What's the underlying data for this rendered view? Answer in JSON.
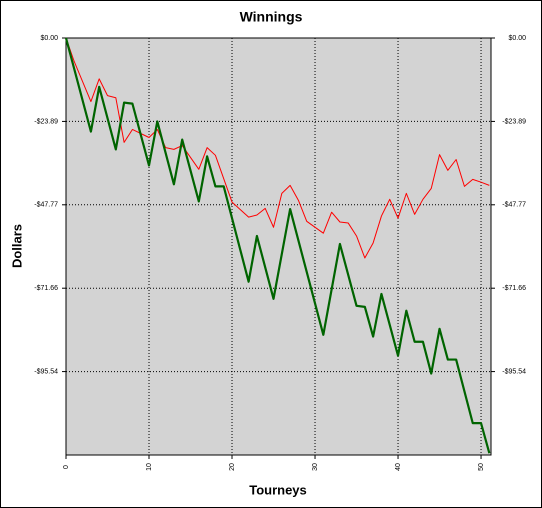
{
  "chart_data": {
    "type": "line",
    "title": "Winnings",
    "x_label": "Tourneys",
    "y_label": "Dollars",
    "xlim": [
      0,
      51.2
    ],
    "xticks": [
      0,
      10,
      20,
      30,
      40,
      50
    ],
    "ylim": [
      -119.43,
      0
    ],
    "yticks": [
      {
        "value": 0,
        "label": "$0.00"
      },
      {
        "value": -23.89,
        "label": "-$23.89"
      },
      {
        "value": -47.77,
        "label": "-$47.77"
      },
      {
        "value": -71.66,
        "label": "-$71.66"
      },
      {
        "value": -95.54,
        "label": "-$95.54"
      }
    ],
    "grid": true,
    "series": [
      {
        "color": "#ff0000",
        "width": 1,
        "x": [
          0,
          1,
          3,
          4,
          5,
          6,
          7,
          8,
          10,
          11,
          12,
          13,
          14,
          16,
          17,
          18,
          20,
          22,
          23,
          24,
          25,
          26,
          27,
          28,
          29,
          31,
          32,
          33,
          34,
          35,
          36,
          37,
          38,
          39,
          40,
          41,
          42,
          43,
          44,
          45,
          46,
          47,
          48,
          49,
          50,
          51
        ],
        "values": [
          0,
          -6.8,
          -18.2,
          -11.7,
          -16.5,
          -17.1,
          -29.9,
          -26.2,
          -28.5,
          -26.2,
          -31.4,
          -31.9,
          -30.8,
          -37.6,
          -31.4,
          -33.6,
          -47.0,
          -51.3,
          -50.7,
          -48.8,
          -54.2,
          -44.5,
          -42.2,
          -46.5,
          -52.5,
          -55.9,
          -49.9,
          -52.7,
          -53.0,
          -56.7,
          -63.0,
          -58.7,
          -51.0,
          -46.2,
          -51.6,
          -44.5,
          -50.5,
          -46.2,
          -43.1,
          -33.4,
          -37.9,
          -34.8,
          -42.5,
          -40.5,
          -41.3,
          -42.2
        ]
      },
      {
        "color": "#006400",
        "width": 2.2,
        "x": [
          0,
          3,
          4,
          6,
          7,
          8,
          10,
          11,
          13,
          14,
          16,
          17,
          18,
          19,
          22,
          23,
          25,
          27,
          31,
          33,
          35,
          36,
          37,
          38,
          40,
          41,
          42,
          43,
          44,
          45,
          46,
          47,
          49,
          50,
          51
        ],
        "values": [
          0,
          -26.8,
          -14.0,
          -31.9,
          -18.5,
          -18.8,
          -36.5,
          -23.9,
          -41.9,
          -29.1,
          -46.8,
          -33.9,
          -42.5,
          -42.5,
          -69.8,
          -56.7,
          -74.7,
          -49.0,
          -85.0,
          -59.0,
          -76.7,
          -77.0,
          -85.5,
          -73.3,
          -91.0,
          -78.1,
          -87.0,
          -87.0,
          -96.1,
          -83.3,
          -92.1,
          -92.1,
          -110.3,
          -110.3,
          -118.9
        ]
      }
    ]
  }
}
